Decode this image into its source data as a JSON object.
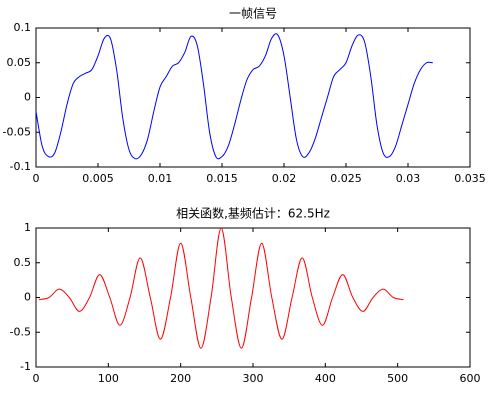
{
  "chart_data": [
    {
      "type": "line",
      "title": "一帧信号",
      "x": [
        0,
        0.0005,
        0.001,
        0.0015,
        0.002,
        0.0025,
        0.003,
        0.0035,
        0.004,
        0.0045,
        0.005,
        0.0055,
        0.006,
        0.0065,
        0.007,
        0.0075,
        0.008,
        0.0085,
        0.009,
        0.0095,
        0.01,
        0.0105,
        0.011,
        0.0115,
        0.012,
        0.0125,
        0.013,
        0.0135,
        0.014,
        0.0145,
        0.015,
        0.0155,
        0.016,
        0.0165,
        0.017,
        0.0175,
        0.018,
        0.0185,
        0.019,
        0.0195,
        0.02,
        0.0205,
        0.021,
        0.0215,
        0.022,
        0.0225,
        0.023,
        0.0235,
        0.024,
        0.0245,
        0.025,
        0.0255,
        0.026,
        0.0265,
        0.027,
        0.0275,
        0.028,
        0.0285,
        0.029,
        0.0295,
        0.03,
        0.0305,
        0.031,
        0.0315,
        0.032
      ],
      "series": [
        {
          "color": "#0000ff",
          "values": [
            -0.02,
            -0.07,
            -0.085,
            -0.08,
            -0.05,
            -0.01,
            0.02,
            0.03,
            0.035,
            0.04,
            0.06,
            0.085,
            0.085,
            0.04,
            -0.03,
            -0.075,
            -0.088,
            -0.082,
            -0.06,
            -0.02,
            0.015,
            0.03,
            0.045,
            0.05,
            0.065,
            0.088,
            0.075,
            0.02,
            -0.05,
            -0.085,
            -0.085,
            -0.07,
            -0.04,
            -0.005,
            0.025,
            0.04,
            0.045,
            0.06,
            0.085,
            0.09,
            0.06,
            0,
            -0.06,
            -0.085,
            -0.08,
            -0.06,
            -0.03,
            0,
            0.03,
            0.04,
            0.05,
            0.075,
            0.09,
            0.08,
            0.03,
            -0.04,
            -0.08,
            -0.085,
            -0.07,
            -0.04,
            -0.01,
            0.02,
            0.04,
            0.05,
            0.05
          ]
        }
      ],
      "xlim": [
        0,
        0.035
      ],
      "xticks": [
        0,
        0.005,
        0.01,
        0.015,
        0.02,
        0.025,
        0.03,
        0.035
      ],
      "ylim": [
        -0.1,
        0.1
      ],
      "yticks": [
        -0.1,
        -0.05,
        0,
        0.05,
        0.1
      ]
    },
    {
      "type": "line",
      "title": "相关函数,基频估计：62.5Hz",
      "x": [
        4,
        18,
        32,
        46,
        60,
        74,
        88,
        102,
        116,
        130,
        144,
        158,
        172,
        186,
        200,
        214,
        228,
        242,
        256,
        270,
        284,
        298,
        312,
        326,
        340,
        354,
        368,
        382,
        396,
        410,
        424,
        438,
        452,
        466,
        480,
        494,
        508
      ],
      "series": [
        {
          "color": "#ff0000",
          "values": [
            -0.03,
            0,
            0.12,
            0,
            -0.2,
            0,
            0.33,
            0,
            -0.4,
            0,
            0.57,
            0,
            -0.6,
            0,
            0.78,
            0,
            -0.73,
            0,
            1,
            0,
            -0.73,
            0,
            0.78,
            0,
            -0.6,
            0,
            0.57,
            0,
            -0.4,
            0,
            0.33,
            0,
            -0.2,
            0,
            0.12,
            0,
            -0.03
          ]
        }
      ],
      "xlim": [
        0,
        600
      ],
      "xticks": [
        0,
        100,
        200,
        300,
        400,
        500,
        600
      ],
      "ylim": [
        -1,
        1
      ],
      "yticks": [
        -1,
        -0.5,
        0,
        0.5,
        1
      ]
    }
  ]
}
